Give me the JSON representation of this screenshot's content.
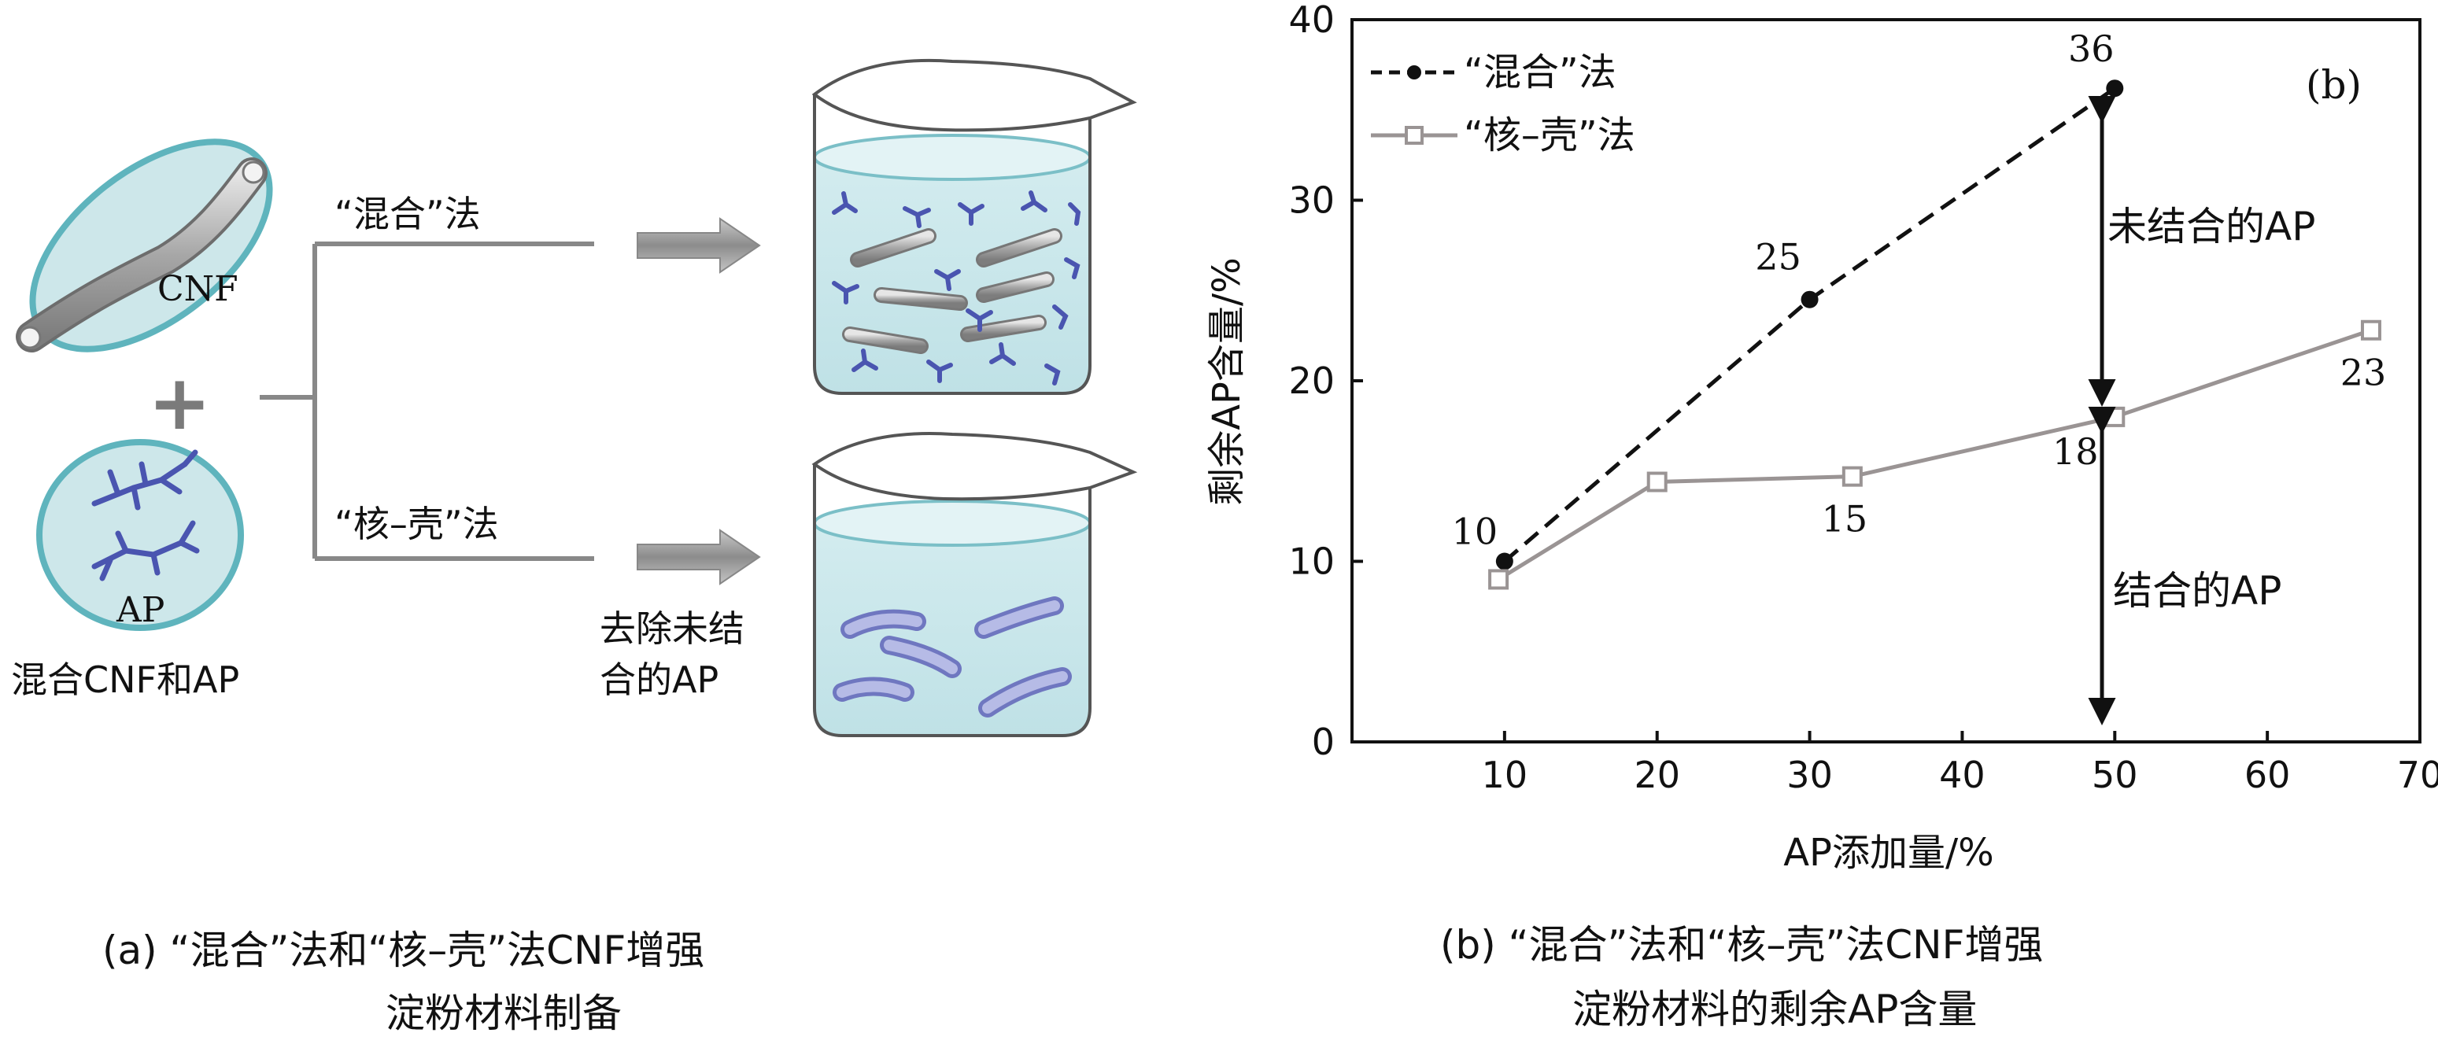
{
  "panel_a": {
    "cnf_label": "CNF",
    "plus": "+",
    "ap_label": "AP",
    "mix_caption": "混合CNF和AP",
    "method_mix": "“混合”法",
    "method_core_shell": "“核–壳”法",
    "remove_line1": "去除未结",
    "remove_line2": "合的AP",
    "caption_line1": "(a) “混合”法和“核–壳”法CNF增强",
    "caption_line2": "淀粉材料制备"
  },
  "panel_b": {
    "panel_tag": "(b)",
    "caption_line1": "(b) “混合”法和“核–壳”法CNF增强",
    "caption_line2": "淀粉材料的剩余AP含量",
    "annot_unbound": "未结合的AP",
    "annot_bound": "结合的AP"
  },
  "chart_data": {
    "type": "line",
    "xlabel": "AP添加量/%",
    "ylabel": "剩余AP含量/%",
    "xlim": [
      0,
      70
    ],
    "ylim": [
      0,
      40
    ],
    "xticks": [
      10,
      20,
      30,
      40,
      50,
      60,
      70
    ],
    "yticks": [
      0,
      10,
      20,
      30,
      40
    ],
    "grid": false,
    "legend_position": "top-left",
    "series": [
      {
        "name": "“混合”法",
        "style": "dashed",
        "marker": "filled-circle",
        "color": "#111111",
        "x": [
          10,
          30,
          50
        ],
        "y": [
          10,
          24.5,
          36.2
        ],
        "labels": [
          "10",
          "25",
          "36"
        ]
      },
      {
        "name": "“核–壳”法",
        "style": "solid",
        "marker": "open-square",
        "color": "#9a9494",
        "x": [
          9.6,
          20,
          32.8,
          50,
          66.8
        ],
        "y": [
          9.0,
          14.4,
          14.7,
          18.0,
          22.8
        ],
        "labels": [
          "",
          "",
          "15",
          "18",
          "23"
        ]
      }
    ]
  }
}
